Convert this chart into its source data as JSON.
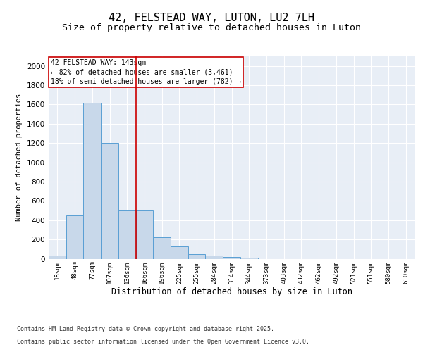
{
  "title1": "42, FELSTEAD WAY, LUTON, LU2 7LH",
  "title2": "Size of property relative to detached houses in Luton",
  "xlabel": "Distribution of detached houses by size in Luton",
  "ylabel": "Number of detached properties",
  "categories": [
    "18sqm",
    "48sqm",
    "77sqm",
    "107sqm",
    "136sqm",
    "166sqm",
    "196sqm",
    "225sqm",
    "255sqm",
    "284sqm",
    "314sqm",
    "344sqm",
    "373sqm",
    "403sqm",
    "432sqm",
    "462sqm",
    "492sqm",
    "521sqm",
    "551sqm",
    "580sqm",
    "610sqm"
  ],
  "values": [
    30,
    450,
    1620,
    1200,
    500,
    500,
    220,
    130,
    50,
    30,
    15,
    10,
    0,
    0,
    0,
    0,
    0,
    0,
    0,
    0,
    0
  ],
  "bar_color": "#c8d8ea",
  "bar_edge_color": "#5a9fd4",
  "red_line_x": 4.5,
  "annotation_title": "42 FELSTEAD WAY: 143sqm",
  "annotation_line1": "← 82% of detached houses are smaller (3,461)",
  "annotation_line2": "18% of semi-detached houses are larger (782) →",
  "annotation_box_color": "#ffffff",
  "annotation_box_edge": "#cc0000",
  "red_line_color": "#cc0000",
  "footer1": "Contains HM Land Registry data © Crown copyright and database right 2025.",
  "footer2": "Contains public sector information licensed under the Open Government Licence v3.0.",
  "ylim": [
    0,
    2100
  ],
  "yticks": [
    0,
    200,
    400,
    600,
    800,
    1000,
    1200,
    1400,
    1600,
    1800,
    2000
  ],
  "bg_color": "#e8eef6",
  "title_fontsize": 11,
  "subtitle_fontsize": 9.5
}
